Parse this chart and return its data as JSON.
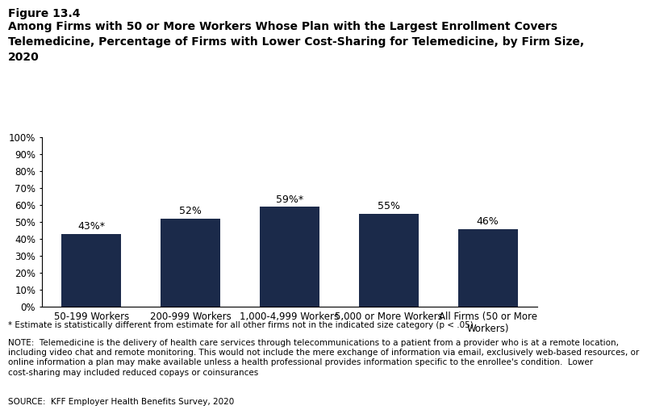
{
  "categories": [
    "50-199 Workers",
    "200-999 Workers",
    "1,000-4,999 Workers",
    "5,000 or More Workers",
    "All Firms (50 or More\nWorkers)"
  ],
  "values": [
    43,
    52,
    59,
    55,
    46
  ],
  "labels": [
    "43%*",
    "52%",
    "59%*",
    "55%",
    "46%"
  ],
  "bar_color": "#1B2A4A",
  "background_color": "#ffffff",
  "title_line1": "Figure 13.4",
  "title_line2": "Among Firms with 50 or More Workers Whose Plan with the Largest Enrollment Covers\nTelemedicine, Percentage of Firms with Lower Cost-Sharing for Telemedicine, by Firm Size,\n2020",
  "ylim": [
    0,
    100
  ],
  "yticks": [
    0,
    10,
    20,
    30,
    40,
    50,
    60,
    70,
    80,
    90,
    100
  ],
  "ytick_labels": [
    "0%",
    "10%",
    "20%",
    "30%",
    "40%",
    "50%",
    "60%",
    "70%",
    "80%",
    "90%",
    "100%"
  ],
  "footnote1": "* Estimate is statistically different from estimate for all other firms not in the indicated size category (p < .05).",
  "footnote2": "NOTE:  Telemedicine is the delivery of health care services through telecommunications to a patient from a provider who is at a remote location,\nincluding video chat and remote monitoring. This would not include the mere exchange of information via email, exclusively web-based resources, or\nonline information a plan may make available unless a health professional provides information specific to the enrollee's condition.  Lower\ncost-sharing may included reduced copays or coinsurances",
  "footnote3": "SOURCE:  KFF Employer Health Benefits Survey, 2020",
  "label_fontsize": 9,
  "tick_fontsize": 8.5,
  "title1_fontsize": 10,
  "title2_fontsize": 10,
  "footnote_fontsize": 7.5
}
